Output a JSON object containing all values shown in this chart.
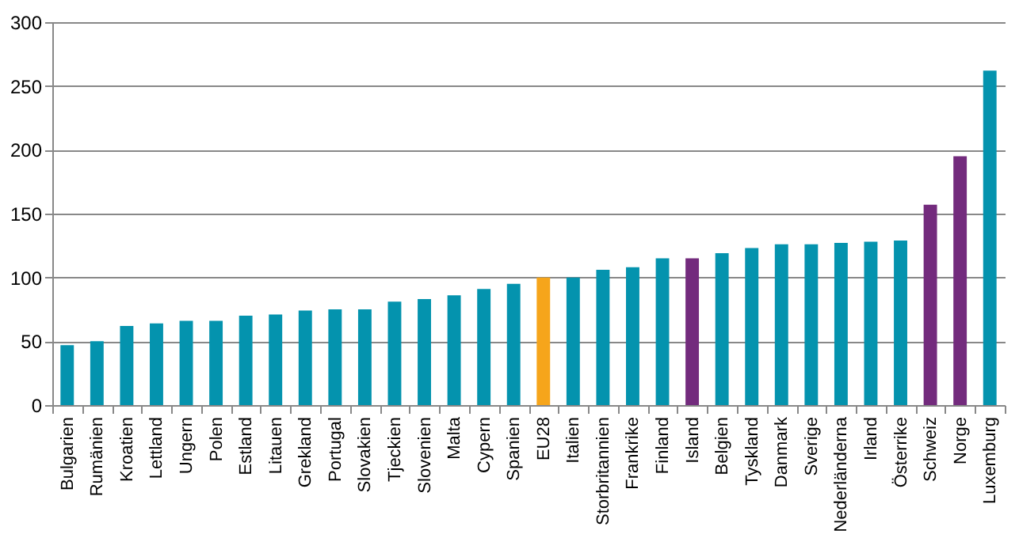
{
  "chart_data": {
    "type": "bar",
    "categories": [
      "Bulgarien",
      "Rumänien",
      "Kroatien",
      "Lettland",
      "Ungern",
      "Polen",
      "Estland",
      "Litauen",
      "Grekland",
      "Portugal",
      "Slovakien",
      "Tjeckien",
      "Slovenien",
      "Malta",
      "Cypern",
      "Spanien",
      "EU28",
      "Italien",
      "Storbritannien",
      "Frankrike",
      "Finland",
      "Island",
      "Belgien",
      "Tyskland",
      "Danmark",
      "Sverige",
      "Nederländerna",
      "Irland",
      "Österrike",
      "Schweiz",
      "Norge",
      "Luxemburg"
    ],
    "values": [
      47,
      50,
      62,
      64,
      66,
      66,
      70,
      71,
      74,
      75,
      75,
      81,
      83,
      86,
      91,
      95,
      100,
      100,
      106,
      108,
      115,
      115,
      119,
      123,
      126,
      126,
      127,
      128,
      129,
      157,
      195,
      262
    ],
    "colors": [
      "#0493ae",
      "#0493ae",
      "#0493ae",
      "#0493ae",
      "#0493ae",
      "#0493ae",
      "#0493ae",
      "#0493ae",
      "#0493ae",
      "#0493ae",
      "#0493ae",
      "#0493ae",
      "#0493ae",
      "#0493ae",
      "#0493ae",
      "#0493ae",
      "#f6a51b",
      "#0493ae",
      "#0493ae",
      "#0493ae",
      "#0493ae",
      "#732b7d",
      "#0493ae",
      "#0493ae",
      "#0493ae",
      "#0493ae",
      "#0493ae",
      "#0493ae",
      "#0493ae",
      "#732b7d",
      "#732b7d",
      "#0493ae"
    ],
    "ylim": [
      0,
      300
    ],
    "yticks": [
      0,
      50,
      100,
      150,
      200,
      250,
      300
    ],
    "grid": "y"
  }
}
